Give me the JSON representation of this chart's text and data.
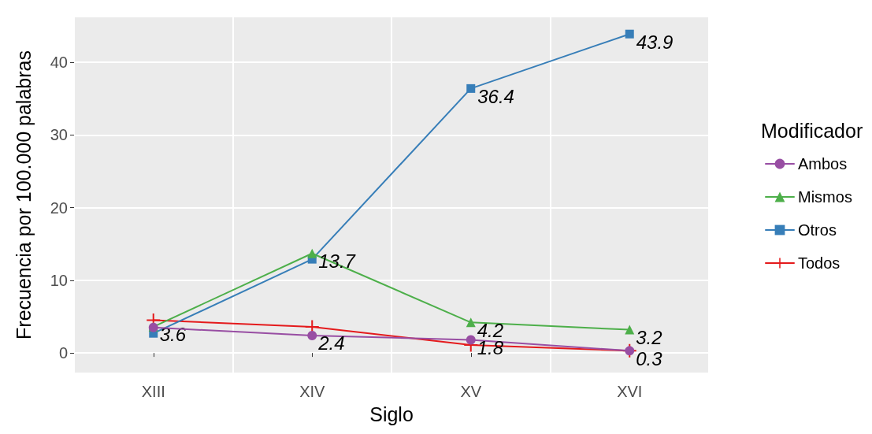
{
  "chart_data": {
    "type": "line",
    "xlabel": "Siglo",
    "ylabel": "Frecuencia por 100.000 palabras",
    "legend_title": "Modificador",
    "categories": [
      "XIII",
      "XIV",
      "XV",
      "XVI"
    ],
    "series": [
      {
        "name": "Ambos",
        "color": "#984ea3",
        "marker": "circle",
        "values": [
          3.5,
          2.4,
          1.8,
          0.3
        ],
        "value_labels": [
          null,
          "2.4",
          "1.8",
          "0.3"
        ]
      },
      {
        "name": "Mismos",
        "color": "#4daf4a",
        "marker": "triangle",
        "values": [
          3.6,
          13.7,
          4.2,
          3.2
        ],
        "value_labels": [
          "3.6",
          "13.7",
          "4.2",
          "3.2"
        ]
      },
      {
        "name": "Otros",
        "color": "#377eb8",
        "marker": "square",
        "values": [
          2.7,
          12.9,
          36.4,
          43.9
        ],
        "value_labels": [
          null,
          null,
          "36.4",
          "43.9"
        ]
      },
      {
        "name": "Todos",
        "color": "#e41a1c",
        "marker": "cross",
        "values": [
          4.5,
          3.6,
          1.1,
          0.3
        ],
        "value_labels": [
          null,
          null,
          null,
          null
        ]
      }
    ],
    "ylim": [
      -2.7,
      46.2
    ],
    "yticks": [
      0,
      10,
      20,
      30,
      40
    ],
    "grid": true,
    "legend": "right"
  }
}
